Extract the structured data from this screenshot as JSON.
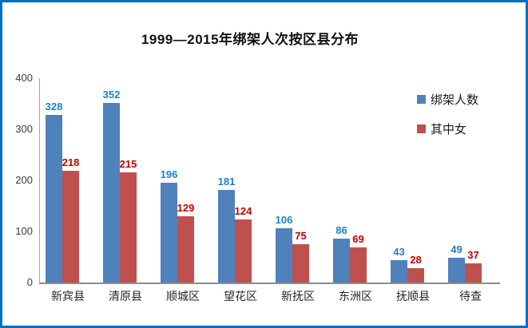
{
  "frame": {
    "border_color": "#0070C0",
    "background_color": "#FFFFFF"
  },
  "chart_data": {
    "type": "bar",
    "title": "1999—2015年绑架人次按区县分布",
    "categories": [
      "新宾县",
      "清原县",
      "顺城区",
      "望花区",
      "新抚区",
      "东洲区",
      "抚顺县",
      "待查"
    ],
    "series": [
      {
        "name": "绑架人数",
        "values": [
          328,
          352,
          196,
          181,
          106,
          86,
          43,
          49
        ],
        "color": "#4F81BD",
        "label_color": "#1F7EC8"
      },
      {
        "name": "其中女",
        "values": [
          218,
          215,
          129,
          124,
          75,
          69,
          28,
          37
        ],
        "color": "#C0504D",
        "label_color": "#C00000"
      }
    ],
    "xlabel": "",
    "ylabel": "",
    "ylim": [
      0,
      400
    ],
    "yticks": [
      0,
      100,
      200,
      300,
      400
    ],
    "grid": false,
    "legend_position": "right-inside",
    "axis_line_color": "#8C8C8C"
  }
}
